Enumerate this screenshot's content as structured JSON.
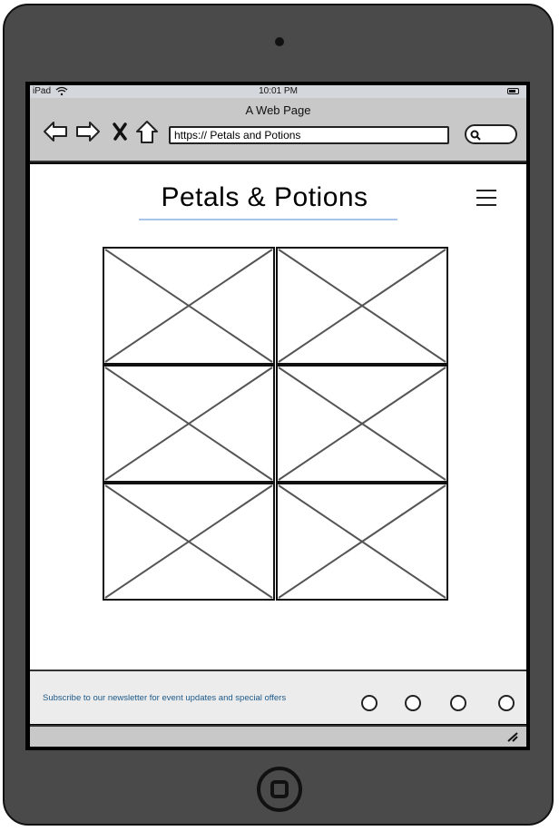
{
  "status_bar": {
    "carrier": "iPad",
    "time": "10:01 PM"
  },
  "browser": {
    "title": "A Web Page",
    "url": "https:// Petals and Potions",
    "icons": [
      "back-arrow-icon",
      "forward-arrow-icon",
      "close-icon",
      "home-icon",
      "search-icon"
    ]
  },
  "page": {
    "title": "Petals & Potions",
    "menu_icon": "hamburger-menu-icon",
    "gallery_count": 6
  },
  "footer": {
    "newsletter_text": "Subscribe to our newsletter for event updates and special offers",
    "social_links": 4
  },
  "colors": {
    "frame": "#4a4a4a",
    "chrome": "#c8c8c8",
    "underline": "#a9c4eb",
    "link": "#1d5a8a"
  }
}
